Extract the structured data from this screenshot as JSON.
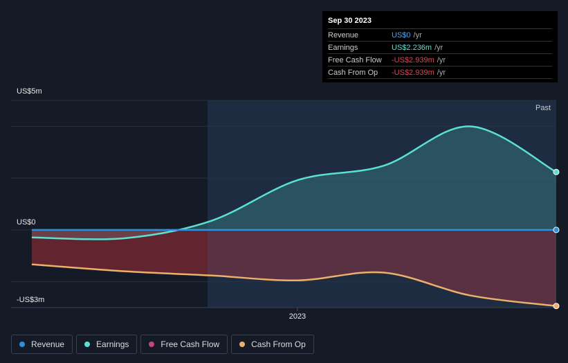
{
  "chart_data": {
    "type": "line",
    "x": [
      2022.23,
      2022.5,
      2022.75,
      2023.0,
      2023.25,
      2023.5,
      2023.75
    ],
    "xlim": [
      2022.17,
      2023.75
    ],
    "xticks": [
      2023
    ],
    "ylim": [
      -3,
      5
    ],
    "yticks": [
      {
        "value": 5,
        "label": "US$5m"
      },
      {
        "value": 0,
        "label": "US$0"
      },
      {
        "value": -3,
        "label": "-US$3m"
      }
    ],
    "grid_lines": [
      -2,
      2,
      4
    ],
    "region_label": "Past",
    "series": [
      {
        "name": "Revenue",
        "color": "#2f8fe0",
        "values": [
          0,
          0,
          0,
          0,
          0,
          0,
          0
        ]
      },
      {
        "name": "Earnings",
        "color": "#5ce1d1",
        "values": [
          -0.29,
          -0.32,
          0.35,
          1.92,
          2.48,
          4.0,
          2.236
        ]
      },
      {
        "name": "Free Cash Flow",
        "color": "#c4457e",
        "values": [
          -1.33,
          -1.6,
          -1.76,
          -1.95,
          -1.65,
          -2.53,
          -2.939
        ]
      },
      {
        "name": "Cash From Op",
        "color": "#eeaf6a",
        "values": [
          -1.33,
          -1.6,
          -1.76,
          -1.95,
          -1.65,
          -2.53,
          -2.939
        ]
      }
    ],
    "tooltip": {
      "date": "Sep 30 2023",
      "rows": [
        {
          "label": "Revenue",
          "value": "US$0",
          "unit": "/yr",
          "color": "#4ea3f0"
        },
        {
          "label": "Earnings",
          "value": "US$2.236m",
          "unit": "/yr",
          "color": "#5ce1d1"
        },
        {
          "label": "Free Cash Flow",
          "value": "-US$2.939m",
          "unit": "/yr",
          "color": "#e8454f"
        },
        {
          "label": "Cash From Op",
          "value": "-US$2.939m",
          "unit": "/yr",
          "color": "#e8454f"
        }
      ]
    }
  }
}
